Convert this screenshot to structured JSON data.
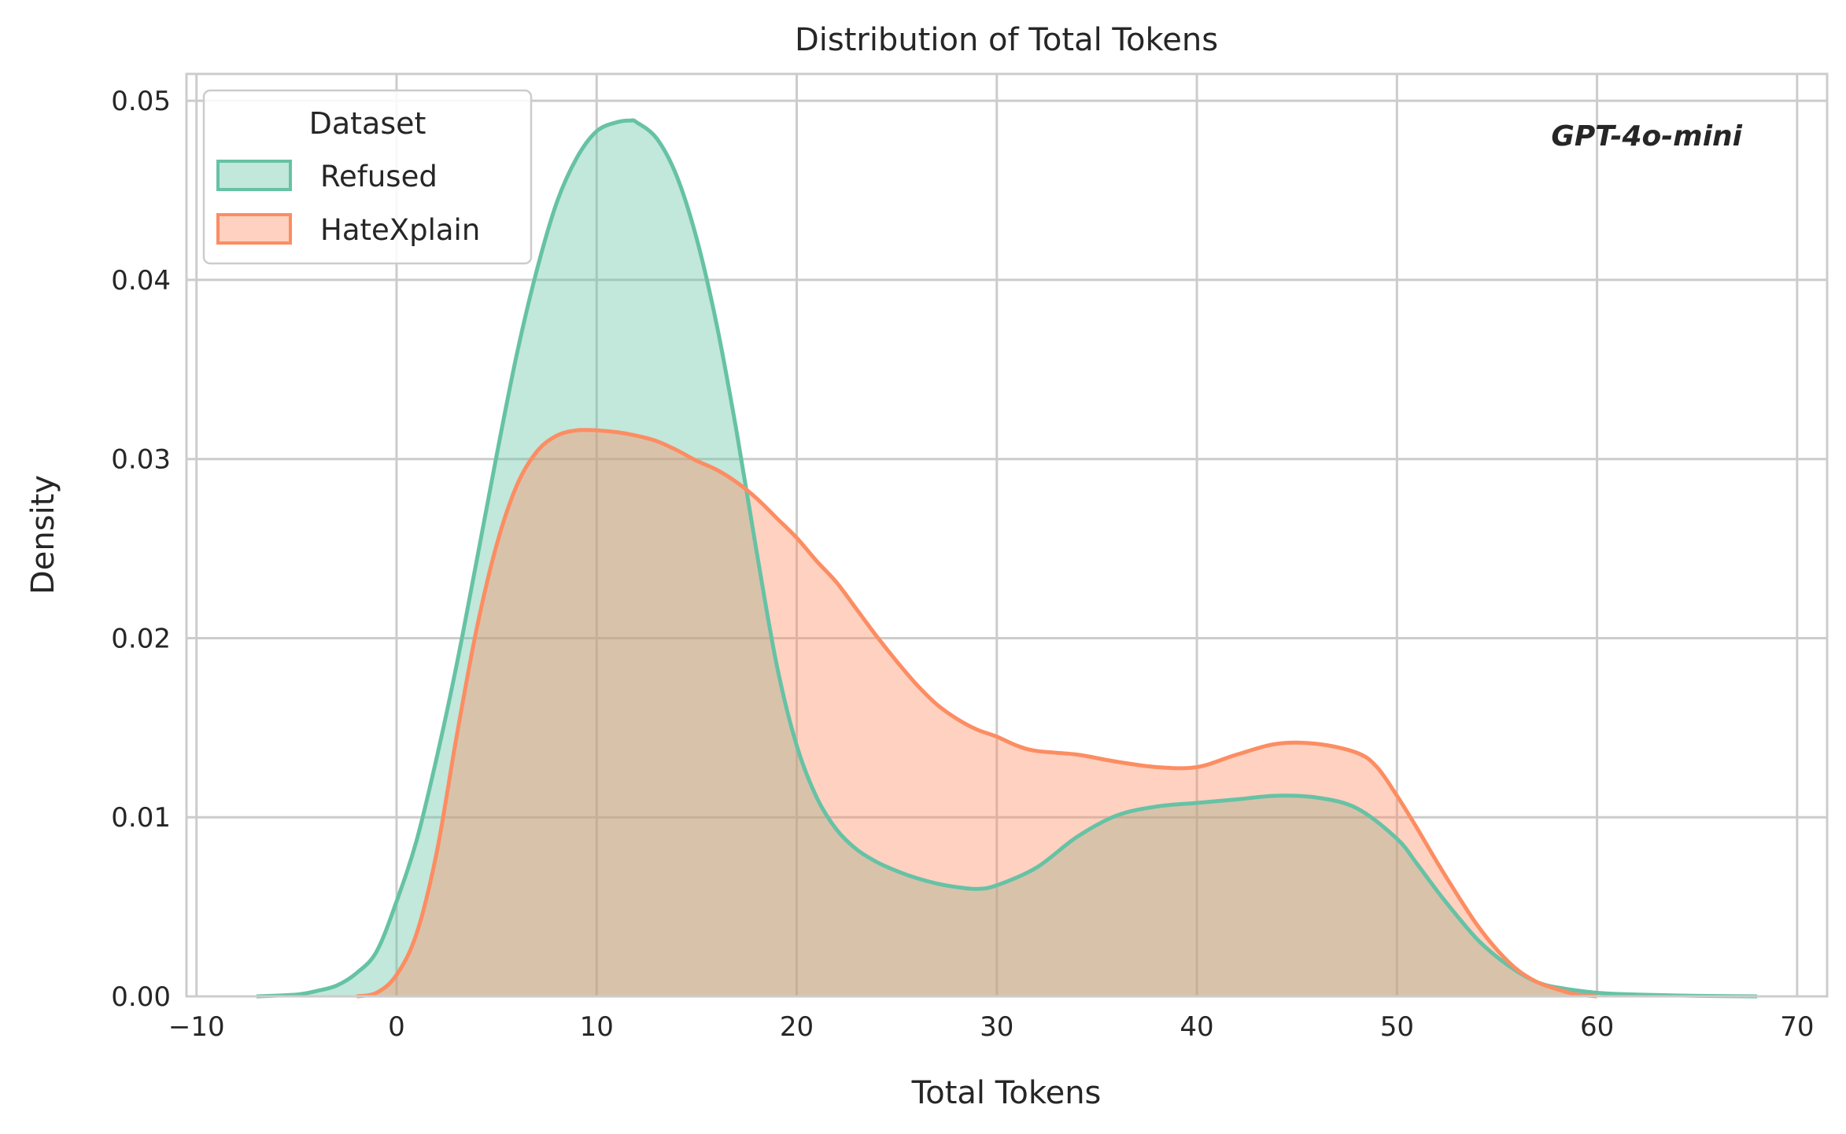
{
  "chart_data": {
    "type": "area",
    "title": "Distribution of Total Tokens",
    "xlabel": "Total Tokens",
    "ylabel": "Density",
    "xlim": [
      -10.5,
      71.5
    ],
    "ylim": [
      0,
      0.0515
    ],
    "xticks": [
      -10,
      0,
      10,
      20,
      30,
      40,
      50,
      60,
      70
    ],
    "xtick_labels": [
      "−10",
      "0",
      "10",
      "20",
      "30",
      "40",
      "50",
      "60",
      "70"
    ],
    "yticks": [
      0.0,
      0.01,
      0.02,
      0.03,
      0.04,
      0.05
    ],
    "ytick_labels": [
      "0.00",
      "0.01",
      "0.02",
      "0.03",
      "0.04",
      "0.05"
    ],
    "grid": true,
    "legend": {
      "title": "Dataset",
      "position": "top-left"
    },
    "annotation": "GPT-4o-mini",
    "series": [
      {
        "name": "Refused",
        "color": "#66c2a5",
        "x": [
          -7,
          -5,
          -4,
          -3,
          -2,
          -1,
          0,
          1,
          2,
          3,
          4,
          5,
          6,
          7,
          8,
          9,
          10,
          11,
          11.7,
          12,
          13,
          14,
          15,
          16,
          17,
          18,
          19,
          20,
          21,
          22,
          23,
          24,
          25,
          26,
          27,
          28,
          29,
          30,
          32,
          34,
          36,
          38,
          40,
          42,
          44,
          46,
          48,
          50,
          51,
          52,
          53,
          54,
          55,
          56,
          57,
          58,
          60,
          62,
          65,
          68
        ],
        "y": [
          0.0,
          0.0001,
          0.0003,
          0.0006,
          0.0013,
          0.0025,
          0.0053,
          0.0087,
          0.0133,
          0.0185,
          0.0243,
          0.0302,
          0.0358,
          0.0405,
          0.0443,
          0.0468,
          0.0483,
          0.0488,
          0.0489,
          0.0488,
          0.0479,
          0.0458,
          0.0423,
          0.0375,
          0.0315,
          0.0248,
          0.0185,
          0.014,
          0.0111,
          0.0093,
          0.0082,
          0.0075,
          0.007,
          0.0066,
          0.0063,
          0.0061,
          0.006,
          0.0062,
          0.0072,
          0.0089,
          0.0101,
          0.0106,
          0.0108,
          0.011,
          0.0112,
          0.0111,
          0.0105,
          0.0088,
          0.0074,
          0.0059,
          0.0045,
          0.0032,
          0.0022,
          0.0014,
          0.0008,
          0.0005,
          0.0002,
          0.0001,
          3e-05,
          0.0
        ],
        "line_y_offset_note": ""
      },
      {
        "name": "HateXplain",
        "color": "#fc8d62",
        "x": [
          -2,
          -1,
          0,
          1,
          2,
          3,
          4,
          5,
          6,
          7,
          8,
          9,
          10,
          11,
          12,
          13,
          14,
          15,
          16,
          17,
          18,
          19,
          20,
          21,
          22,
          23,
          24,
          25,
          26,
          27,
          28,
          29,
          30,
          31,
          32,
          34,
          36,
          38,
          40,
          42,
          44,
          46,
          48,
          49,
          50,
          51,
          52,
          53,
          54,
          55,
          56,
          57,
          58,
          59,
          60
        ],
        "y": [
          0.0,
          0.0002,
          0.0012,
          0.0035,
          0.008,
          0.0145,
          0.0205,
          0.0252,
          0.0285,
          0.0304,
          0.0313,
          0.0316,
          0.0316,
          0.0315,
          0.0313,
          0.031,
          0.0305,
          0.0299,
          0.0294,
          0.0287,
          0.0278,
          0.0267,
          0.0256,
          0.0243,
          0.0231,
          0.0216,
          0.0201,
          0.0187,
          0.0174,
          0.0163,
          0.0155,
          0.0149,
          0.0145,
          0.014,
          0.0137,
          0.0135,
          0.0131,
          0.0128,
          0.0128,
          0.0135,
          0.0141,
          0.0141,
          0.0136,
          0.0128,
          0.0112,
          0.0094,
          0.0075,
          0.0057,
          0.004,
          0.0026,
          0.0015,
          0.0008,
          0.0004,
          0.0001,
          0.0
        ]
      }
    ]
  }
}
